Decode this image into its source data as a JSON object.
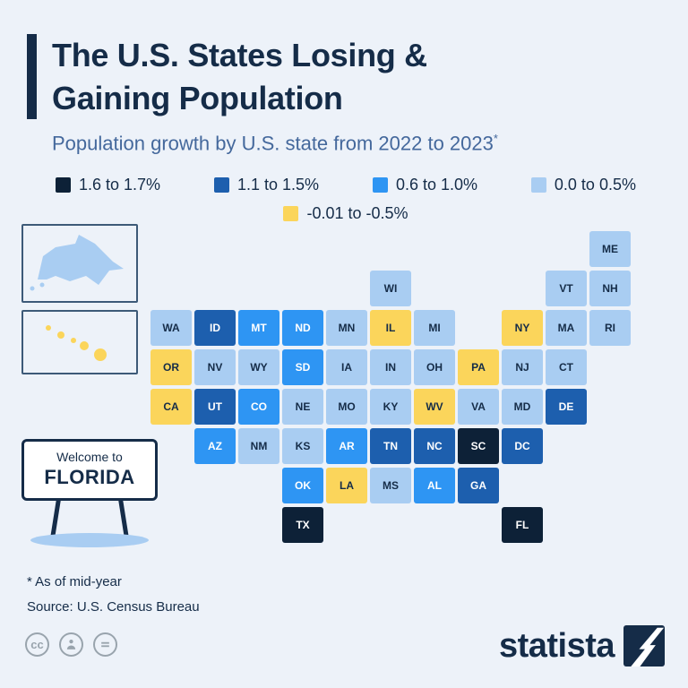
{
  "header": {
    "title_line1": "The U.S. States Losing &",
    "title_line2": "Gaining Population",
    "subtitle": "Population growth by U.S. state from 2022 to 2023",
    "subtitle_marker": "*"
  },
  "sign": {
    "line1": "Welcome to",
    "line2": "FLORIDA"
  },
  "footnotes": [
    "* As of mid-year",
    "Source: U.S. Census Bureau"
  ],
  "footer": {
    "cc_text": "cc"
  },
  "branding": {
    "logo_text": "statista"
  },
  "colors": {
    "background": "#edf2f9",
    "ink": "#152c48",
    "subtitle": "#44689c",
    "muted": "#99a4ad",
    "sign_base": "#a9cdf2"
  },
  "chart_data": {
    "type": "choropleth_map",
    "title": "The U.S. States Losing & Gaining Population",
    "subtitle": "Population growth by U.S. state from 2022 to 2023*",
    "legend_position": "top",
    "categories": [
      {
        "label": "1.6 to 1.7%",
        "color": "#0d2137"
      },
      {
        "label": "1.1 to 1.5%",
        "color": "#1d5fae"
      },
      {
        "label": "0.6 to 1.0%",
        "color": "#2e95f3"
      },
      {
        "label": "0.0 to 0.5%",
        "color": "#a9cdf2"
      },
      {
        "label": "-0.01 to -0.5%",
        "color": "#fbd55b"
      }
    ],
    "states": [
      {
        "code": "AL",
        "name": "Alabama",
        "category": "0.6 to 1.0%"
      },
      {
        "code": "AK",
        "name": "Alaska",
        "category": "0.0 to 0.5%"
      },
      {
        "code": "AZ",
        "name": "Arizona",
        "category": "0.6 to 1.0%"
      },
      {
        "code": "AR",
        "name": "Arkansas",
        "category": "0.6 to 1.0%"
      },
      {
        "code": "CA",
        "name": "California",
        "category": "-0.01 to -0.5%"
      },
      {
        "code": "CO",
        "name": "Colorado",
        "category": "0.6 to 1.0%"
      },
      {
        "code": "CT",
        "name": "Connecticut",
        "category": "0.0 to 0.5%"
      },
      {
        "code": "DE",
        "name": "Delaware",
        "category": "1.1 to 1.5%"
      },
      {
        "code": "DC",
        "name": "District of Columbia",
        "category": "1.1 to 1.5%"
      },
      {
        "code": "FL",
        "name": "Florida",
        "category": "1.6 to 1.7%"
      },
      {
        "code": "GA",
        "name": "Georgia",
        "category": "1.1 to 1.5%"
      },
      {
        "code": "HI",
        "name": "Hawaii",
        "category": "-0.01 to -0.5%"
      },
      {
        "code": "ID",
        "name": "Idaho",
        "category": "1.1 to 1.5%"
      },
      {
        "code": "IL",
        "name": "Illinois",
        "category": "-0.01 to -0.5%"
      },
      {
        "code": "IN",
        "name": "Indiana",
        "category": "0.0 to 0.5%"
      },
      {
        "code": "IA",
        "name": "Iowa",
        "category": "0.0 to 0.5%"
      },
      {
        "code": "KS",
        "name": "Kansas",
        "category": "0.0 to 0.5%"
      },
      {
        "code": "KY",
        "name": "Kentucky",
        "category": "0.0 to 0.5%"
      },
      {
        "code": "LA",
        "name": "Louisiana",
        "category": "-0.01 to -0.5%"
      },
      {
        "code": "ME",
        "name": "Maine",
        "category": "0.0 to 0.5%"
      },
      {
        "code": "MD",
        "name": "Maryland",
        "category": "0.0 to 0.5%"
      },
      {
        "code": "MA",
        "name": "Massachusetts",
        "category": "0.0 to 0.5%"
      },
      {
        "code": "MI",
        "name": "Michigan",
        "category": "0.0 to 0.5%"
      },
      {
        "code": "MN",
        "name": "Minnesota",
        "category": "0.0 to 0.5%"
      },
      {
        "code": "MS",
        "name": "Mississippi",
        "category": "0.0 to 0.5%"
      },
      {
        "code": "MO",
        "name": "Missouri",
        "category": "0.0 to 0.5%"
      },
      {
        "code": "MT",
        "name": "Montana",
        "category": "0.6 to 1.0%"
      },
      {
        "code": "NE",
        "name": "Nebraska",
        "category": "0.0 to 0.5%"
      },
      {
        "code": "NV",
        "name": "Nevada",
        "category": "0.0 to 0.5%"
      },
      {
        "code": "NH",
        "name": "New Hampshire",
        "category": "0.0 to 0.5%"
      },
      {
        "code": "NJ",
        "name": "New Jersey",
        "category": "0.0 to 0.5%"
      },
      {
        "code": "NM",
        "name": "New Mexico",
        "category": "0.0 to 0.5%"
      },
      {
        "code": "NY",
        "name": "New York",
        "category": "-0.01 to -0.5%"
      },
      {
        "code": "NC",
        "name": "North Carolina",
        "category": "1.1 to 1.5%"
      },
      {
        "code": "ND",
        "name": "North Dakota",
        "category": "0.6 to 1.0%"
      },
      {
        "code": "OH",
        "name": "Ohio",
        "category": "0.0 to 0.5%"
      },
      {
        "code": "OK",
        "name": "Oklahoma",
        "category": "0.6 to 1.0%"
      },
      {
        "code": "OR",
        "name": "Oregon",
        "category": "-0.01 to -0.5%"
      },
      {
        "code": "PA",
        "name": "Pennsylvania",
        "category": "-0.01 to -0.5%"
      },
      {
        "code": "RI",
        "name": "Rhode Island",
        "category": "0.0 to 0.5%"
      },
      {
        "code": "SC",
        "name": "South Carolina",
        "category": "1.6 to 1.7%"
      },
      {
        "code": "SD",
        "name": "South Dakota",
        "category": "0.6 to 1.0%"
      },
      {
        "code": "TN",
        "name": "Tennessee",
        "category": "1.1 to 1.5%"
      },
      {
        "code": "TX",
        "name": "Texas",
        "category": "1.6 to 1.7%"
      },
      {
        "code": "UT",
        "name": "Utah",
        "category": "1.1 to 1.5%"
      },
      {
        "code": "VT",
        "name": "Vermont",
        "category": "0.0 to 0.5%"
      },
      {
        "code": "VA",
        "name": "Virginia",
        "category": "0.0 to 0.5%"
      },
      {
        "code": "WA",
        "name": "Washington",
        "category": "0.0 to 0.5%"
      },
      {
        "code": "WV",
        "name": "West Virginia",
        "category": "-0.01 to -0.5%"
      },
      {
        "code": "WI",
        "name": "Wisconsin",
        "category": "0.0 to 0.5%"
      },
      {
        "code": "WY",
        "name": "Wyoming",
        "category": "0.0 to 0.5%"
      }
    ]
  }
}
